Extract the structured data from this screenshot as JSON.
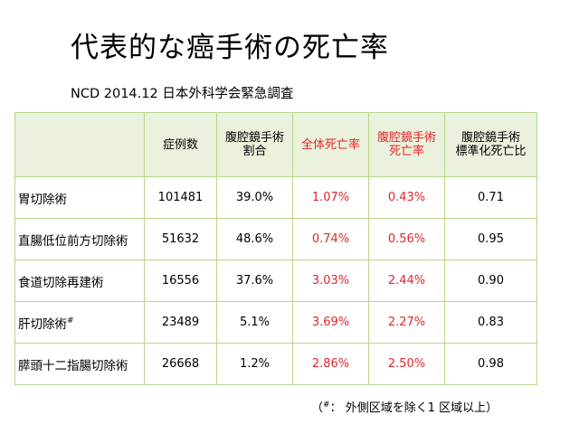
{
  "title": "代表的な癌手術の死亡率",
  "subtitle": "NCD 2014.12 日本外科学会緊急調査",
  "colors": {
    "border": "#b9d58a",
    "header_bg": "#eaf1dc",
    "highlight_text": "#e0262a"
  },
  "table": {
    "headers": [
      {
        "line1": "症例数",
        "line2": "",
        "highlight": false
      },
      {
        "line1": "腹腔鏡手術",
        "line2": "割合",
        "highlight": false
      },
      {
        "line1": "全体死亡率",
        "line2": "",
        "highlight": true
      },
      {
        "line1": "腹腔鏡手術",
        "line2": "死亡率",
        "highlight": true
      },
      {
        "line1": "腹腔鏡手術",
        "line2": "標準化死亡比",
        "highlight": false
      }
    ],
    "rows": [
      {
        "name": "胃切除術",
        "mark": "",
        "cases": "101481",
        "lap_ratio": "39.0%",
        "overall_mortality": "1.07%",
        "lap_mortality": "0.43%",
        "smr": "0.71"
      },
      {
        "name": "直腸低位前方切除術",
        "mark": "",
        "cases": "51632",
        "lap_ratio": "48.6%",
        "overall_mortality": "0.74%",
        "lap_mortality": "0.56%",
        "smr": "0.95"
      },
      {
        "name": "食道切除再建術",
        "mark": "",
        "cases": "16556",
        "lap_ratio": "37.6%",
        "overall_mortality": "3.03%",
        "lap_mortality": "2.44%",
        "smr": "0.90"
      },
      {
        "name": "肝切除術",
        "mark": "#",
        "cases": "23489",
        "lap_ratio": "5.1%",
        "overall_mortality": "3.69%",
        "lap_mortality": "2.27%",
        "smr": "0.83"
      },
      {
        "name": "膵頭十二指腸切除術",
        "mark": "",
        "cases": "26668",
        "lap_ratio": "1.2%",
        "overall_mortality": "2.86%",
        "lap_mortality": "2.50%",
        "smr": "0.98"
      }
    ]
  },
  "footnote": {
    "open": "（",
    "symbol": "#",
    "text": "： 外側区域を除く1 区域以上）"
  }
}
